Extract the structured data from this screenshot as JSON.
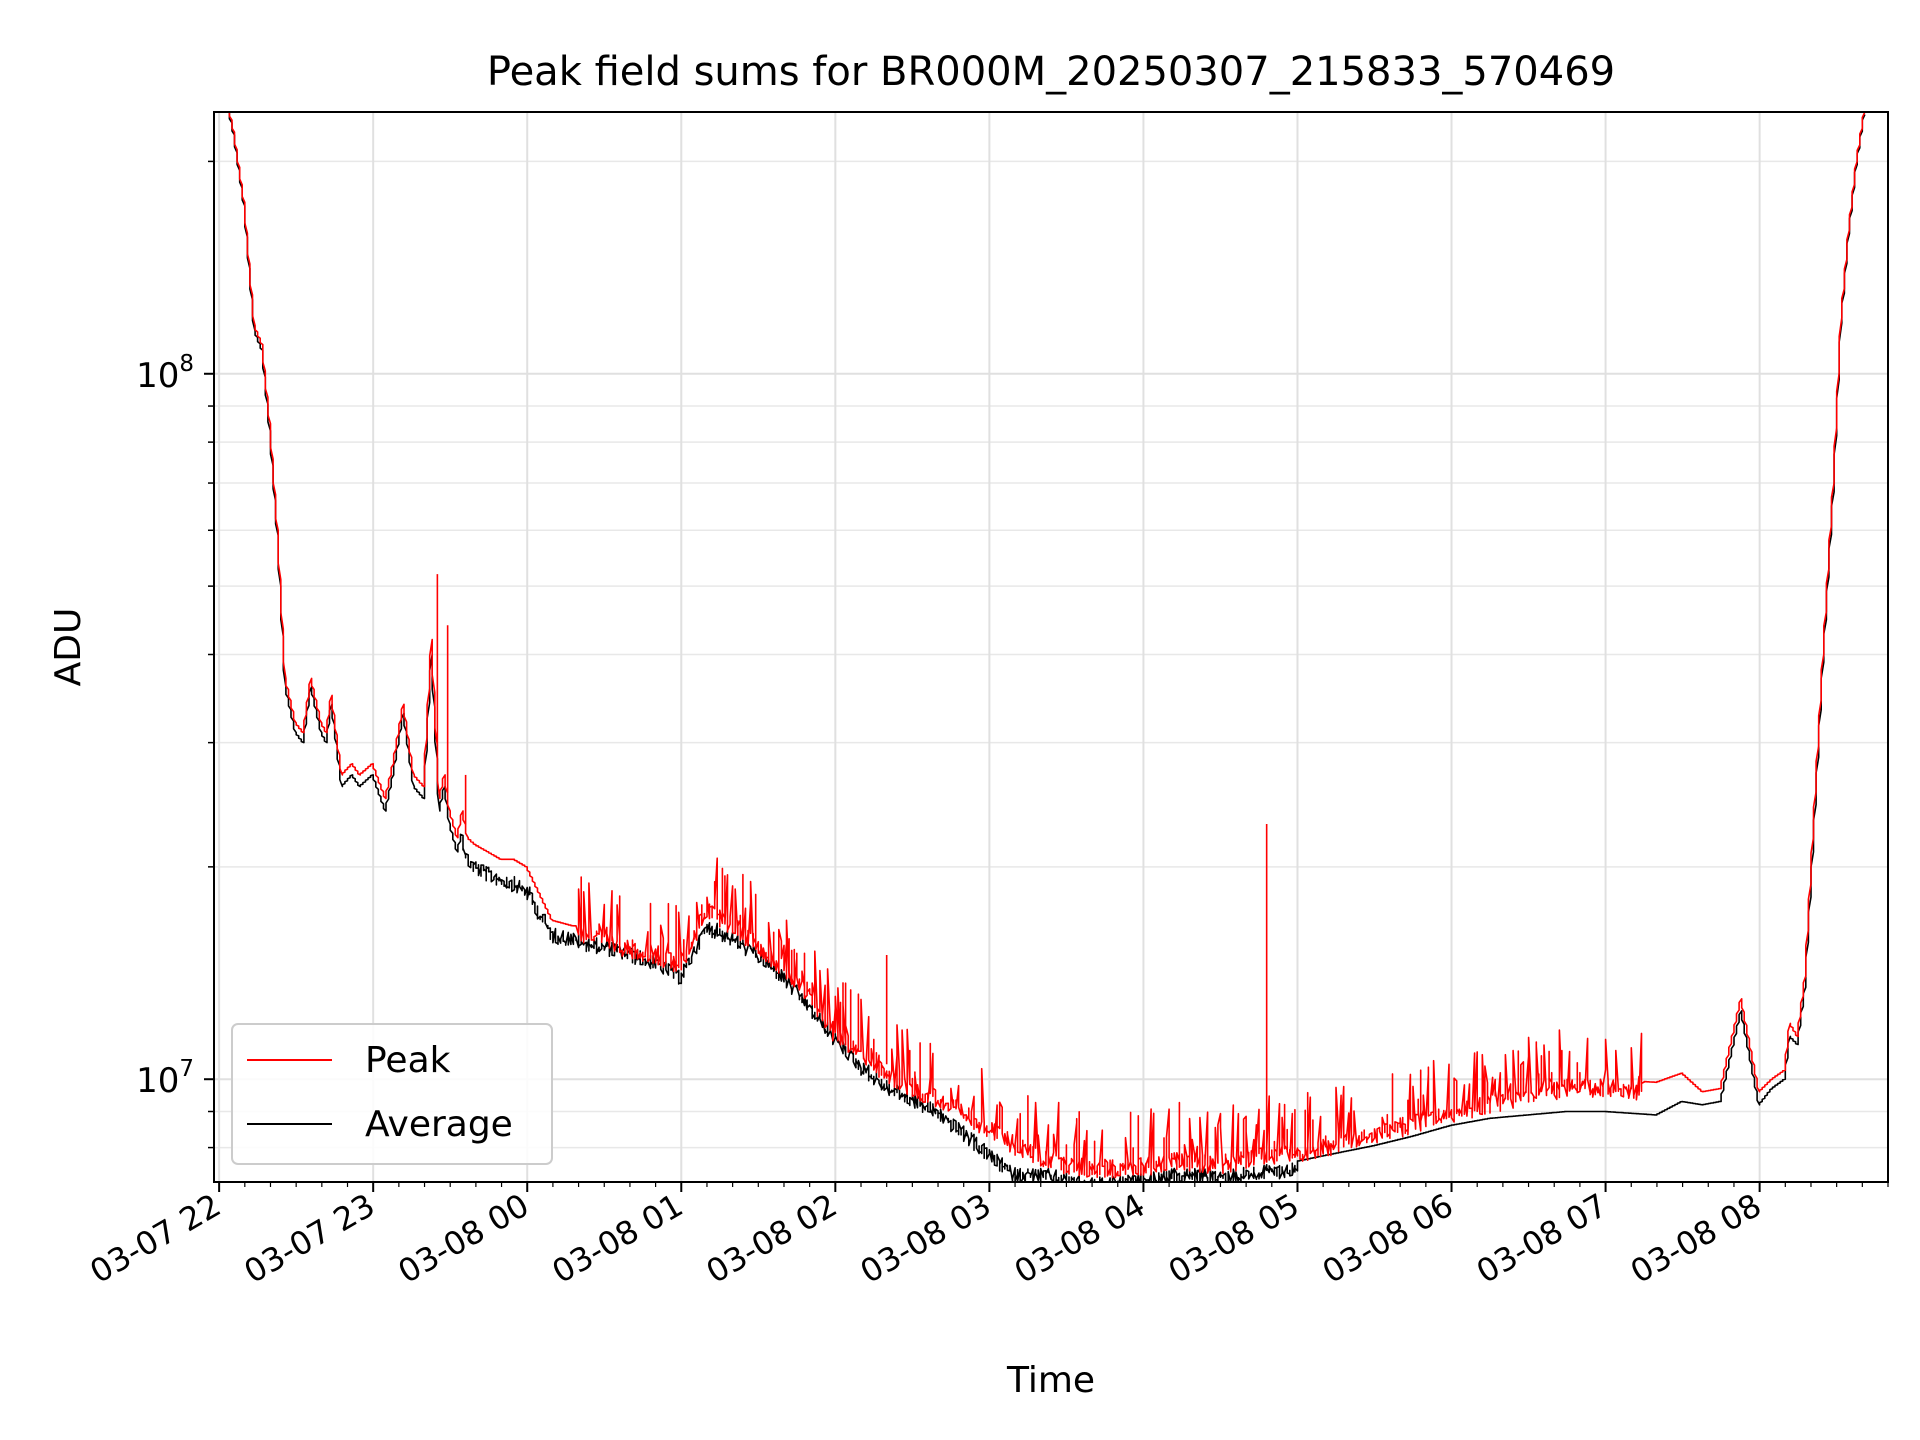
{
  "chart_data": {
    "type": "line",
    "title": "Peak field sums for BR000M_20250307_215833_570469",
    "xlabel": "Time",
    "ylabel": "ADU",
    "y_scale": "log",
    "xlim": [
      "2025-03-07 21:58",
      "2025-03-08 08:50"
    ],
    "ylim": [
      7150000,
      235000000
    ],
    "x_ticks": [
      {
        "t": "2025-03-07 22:00",
        "label": "03-07 22"
      },
      {
        "t": "2025-03-07 23:00",
        "label": "03-07 23"
      },
      {
        "t": "2025-03-08 00:00",
        "label": "03-08 00"
      },
      {
        "t": "2025-03-08 01:00",
        "label": "03-08 01"
      },
      {
        "t": "2025-03-08 02:00",
        "label": "03-08 02"
      },
      {
        "t": "2025-03-08 03:00",
        "label": "03-08 03"
      },
      {
        "t": "2025-03-08 04:00",
        "label": "03-08 04"
      },
      {
        "t": "2025-03-08 05:00",
        "label": "03-08 05"
      },
      {
        "t": "2025-03-08 06:00",
        "label": "03-08 06"
      },
      {
        "t": "2025-03-08 07:00",
        "label": "03-08 07"
      },
      {
        "t": "2025-03-08 08:00",
        "label": "03-08 08"
      }
    ],
    "y_ticks": [
      {
        "value": 10000000,
        "base": "10",
        "exp": "7"
      },
      {
        "value": 100000000,
        "base": "10",
        "exp": "8"
      }
    ],
    "grid": true,
    "legend_position": "lower-left",
    "series": [
      {
        "name": "Peak",
        "color": "#ff0000",
        "x": [
          "2025-03-07 22:04",
          "2025-03-07 22:06",
          "2025-03-07 22:10",
          "2025-03-07 22:14",
          "2025-03-07 22:17",
          "2025-03-07 22:20",
          "2025-03-07 22:23",
          "2025-03-07 22:26",
          "2025-03-07 22:30",
          "2025-03-07 22:33",
          "2025-03-07 22:36",
          "2025-03-07 22:40",
          "2025-03-07 22:42",
          "2025-03-07 22:44",
          "2025-03-07 22:48",
          "2025-03-07 22:52",
          "2025-03-07 22:55",
          "2025-03-07 23:00",
          "2025-03-07 23:05",
          "2025-03-07 23:08",
          "2025-03-07 23:12",
          "2025-03-07 23:16",
          "2025-03-07 23:20",
          "2025-03-07 23:23",
          "2025-03-07 23:26",
          "2025-03-07 23:28",
          "2025-03-07 23:30",
          "2025-03-07 23:33",
          "2025-03-07 23:35",
          "2025-03-07 23:37",
          "2025-03-07 23:40",
          "2025-03-07 23:45",
          "2025-03-07 23:50",
          "2025-03-07 23:55",
          "2025-03-08 00:00",
          "2025-03-08 00:10",
          "2025-03-08 00:18",
          "2025-03-08 00:22",
          "2025-03-08 00:30",
          "2025-03-08 00:40",
          "2025-03-08 00:50",
          "2025-03-08 01:00",
          "2025-03-08 01:10",
          "2025-03-08 01:15",
          "2025-03-08 01:20",
          "2025-03-08 01:30",
          "2025-03-08 01:40",
          "2025-03-08 01:50",
          "2025-03-08 02:00",
          "2025-03-08 02:10",
          "2025-03-08 02:20",
          "2025-03-08 02:30",
          "2025-03-08 02:40",
          "2025-03-08 02:50",
          "2025-03-08 03:00",
          "2025-03-08 03:10",
          "2025-03-08 03:20",
          "2025-03-08 03:30",
          "2025-03-08 03:40",
          "2025-03-08 03:50",
          "2025-03-08 04:00",
          "2025-03-08 04:15",
          "2025-03-08 04:30",
          "2025-03-08 04:45",
          "2025-03-08 05:00",
          "2025-03-08 05:15",
          "2025-03-08 05:30",
          "2025-03-08 05:45",
          "2025-03-08 06:00",
          "2025-03-08 06:15",
          "2025-03-08 06:30",
          "2025-03-08 06:45",
          "2025-03-08 07:00",
          "2025-03-08 07:20",
          "2025-03-08 07:30",
          "2025-03-08 07:38",
          "2025-03-08 07:45",
          "2025-03-08 07:53",
          "2025-03-08 08:00",
          "2025-03-08 08:05",
          "2025-03-08 08:10",
          "2025-03-08 08:12",
          "2025-03-08 08:15",
          "2025-03-08 08:18",
          "2025-03-08 08:21",
          "2025-03-08 08:25",
          "2025-03-08 08:29",
          "2025-03-08 08:32",
          "2025-03-08 08:35",
          "2025-03-08 08:38",
          "2025-03-08 08:41"
        ],
        "y": [
          238000000,
          220000000,
          175000000,
          117000000,
          110000000,
          85000000,
          60000000,
          37000000,
          32000000,
          31000000,
          37000000,
          32000000,
          31000000,
          35000000,
          27000000,
          28000000,
          27000000,
          28000000,
          25000000,
          28000000,
          34000000,
          27000000,
          26000000,
          42000000,
          25000000,
          27000000,
          24000000,
          22000000,
          24000000,
          22000000,
          21500000,
          21000000,
          20500000,
          20500000,
          20000000,
          16800000,
          16500000,
          16500000,
          16200000,
          15800000,
          15500000,
          15000000,
          17800000,
          17500000,
          17000000,
          16000000,
          14800000,
          13500000,
          12000000,
          11200000,
          10500000,
          10000000,
          9700000,
          9200000,
          8800000,
          8300000,
          8000000,
          7800000,
          7700000,
          7700000,
          7750000,
          7900000,
          7800000,
          8000000,
          8100000,
          8300000,
          8600000,
          8900000,
          9200000,
          9500000,
          9800000,
          10000000,
          10000000,
          9900000,
          10200000,
          9600000,
          9700000,
          13000000,
          9600000,
          10000000,
          10300000,
          12000000,
          11500000,
          14000000,
          22000000,
          40000000,
          70000000,
          120000000,
          160000000,
          200000000,
          235000000
        ],
        "spikes": [
          {
            "x": "2025-03-07 23:25",
            "y": 52000000
          },
          {
            "x": "2025-03-07 23:29",
            "y": 44000000
          },
          {
            "x": "2025-03-07 23:36",
            "y": 27000000
          },
          {
            "x": "2025-03-08 02:20",
            "y": 15000000
          },
          {
            "x": "2025-03-08 04:48",
            "y": 23000000
          }
        ],
        "noise": {
          "from": "2025-03-08 00:20",
          "to": "2025-03-08 07:15",
          "amplitude": 0.18
        }
      },
      {
        "name": "Average",
        "color": "#000000",
        "x": [
          "2025-03-07 22:04",
          "2025-03-07 22:06",
          "2025-03-07 22:10",
          "2025-03-07 22:14",
          "2025-03-07 22:17",
          "2025-03-07 22:20",
          "2025-03-07 22:23",
          "2025-03-07 22:26",
          "2025-03-07 22:30",
          "2025-03-07 22:33",
          "2025-03-07 22:36",
          "2025-03-07 22:40",
          "2025-03-07 22:42",
          "2025-03-07 22:44",
          "2025-03-07 22:48",
          "2025-03-07 22:52",
          "2025-03-07 22:55",
          "2025-03-07 23:00",
          "2025-03-07 23:05",
          "2025-03-07 23:08",
          "2025-03-07 23:12",
          "2025-03-07 23:16",
          "2025-03-07 23:20",
          "2025-03-07 23:23",
          "2025-03-07 23:26",
          "2025-03-07 23:28",
          "2025-03-07 23:30",
          "2025-03-07 23:33",
          "2025-03-07 23:35",
          "2025-03-07 23:37",
          "2025-03-07 23:40",
          "2025-03-07 23:45",
          "2025-03-07 23:50",
          "2025-03-07 23:55",
          "2025-03-08 00:00",
          "2025-03-08 00:10",
          "2025-03-08 00:18",
          "2025-03-08 00:22",
          "2025-03-08 00:30",
          "2025-03-08 00:40",
          "2025-03-08 00:50",
          "2025-03-08 01:00",
          "2025-03-08 01:10",
          "2025-03-08 01:15",
          "2025-03-08 01:20",
          "2025-03-08 01:30",
          "2025-03-08 01:40",
          "2025-03-08 01:50",
          "2025-03-08 02:00",
          "2025-03-08 02:10",
          "2025-03-08 02:20",
          "2025-03-08 02:30",
          "2025-03-08 02:40",
          "2025-03-08 02:50",
          "2025-03-08 03:00",
          "2025-03-08 03:10",
          "2025-03-08 03:20",
          "2025-03-08 03:30",
          "2025-03-08 03:40",
          "2025-03-08 03:50",
          "2025-03-08 04:00",
          "2025-03-08 04:15",
          "2025-03-08 04:30",
          "2025-03-08 04:45",
          "2025-03-08 05:00",
          "2025-03-08 05:15",
          "2025-03-08 05:30",
          "2025-03-08 05:45",
          "2025-03-08 06:00",
          "2025-03-08 06:15",
          "2025-03-08 06:30",
          "2025-03-08 06:45",
          "2025-03-08 07:00",
          "2025-03-08 07:20",
          "2025-03-08 07:30",
          "2025-03-08 07:38",
          "2025-03-08 07:45",
          "2025-03-08 07:53",
          "2025-03-08 08:00",
          "2025-03-08 08:05",
          "2025-03-08 08:10",
          "2025-03-08 08:12",
          "2025-03-08 08:15",
          "2025-03-08 08:18",
          "2025-03-08 08:21",
          "2025-03-08 08:25",
          "2025-03-08 08:29",
          "2025-03-08 08:32",
          "2025-03-08 08:35",
          "2025-03-08 08:38",
          "2025-03-08 08:41"
        ],
        "y": [
          236000000,
          218000000,
          173000000,
          115000000,
          108000000,
          83000000,
          59000000,
          36000000,
          31000000,
          30000000,
          36000000,
          31000000,
          30000000,
          34000000,
          26000000,
          27000000,
          26000000,
          27000000,
          24000000,
          27000000,
          33000000,
          26000000,
          25000000,
          40000000,
          24000000,
          26000000,
          23000000,
          21000000,
          22500000,
          21000000,
          20500000,
          20000000,
          19700000,
          19400000,
          19000000,
          16400000,
          16200000,
          16000000,
          15800000,
          15400000,
          15000000,
          14300000,
          16800000,
          16600000,
          16200000,
          15400000,
          14300000,
          13000000,
          11700000,
          10700000,
          10000000,
          9600000,
          9200000,
          8600000,
          8000000,
          7500000,
          7500000,
          7400000,
          7250000,
          7300000,
          7350000,
          7500000,
          7450000,
          7550000,
          7650000,
          7850000,
          8050000,
          8300000,
          8600000,
          8800000,
          8900000,
          9000000,
          9000000,
          8900000,
          9300000,
          9200000,
          9300000,
          12500000,
          9200000,
          9700000,
          10000000,
          11500000,
          11200000,
          13500000,
          21000000,
          39000000,
          68000000,
          118000000,
          158000000,
          198000000,
          233000000
        ],
        "noise": {
          "from": "2025-03-07 23:35",
          "to": "2025-03-08 05:00",
          "amplitude": 0.05
        }
      }
    ]
  }
}
